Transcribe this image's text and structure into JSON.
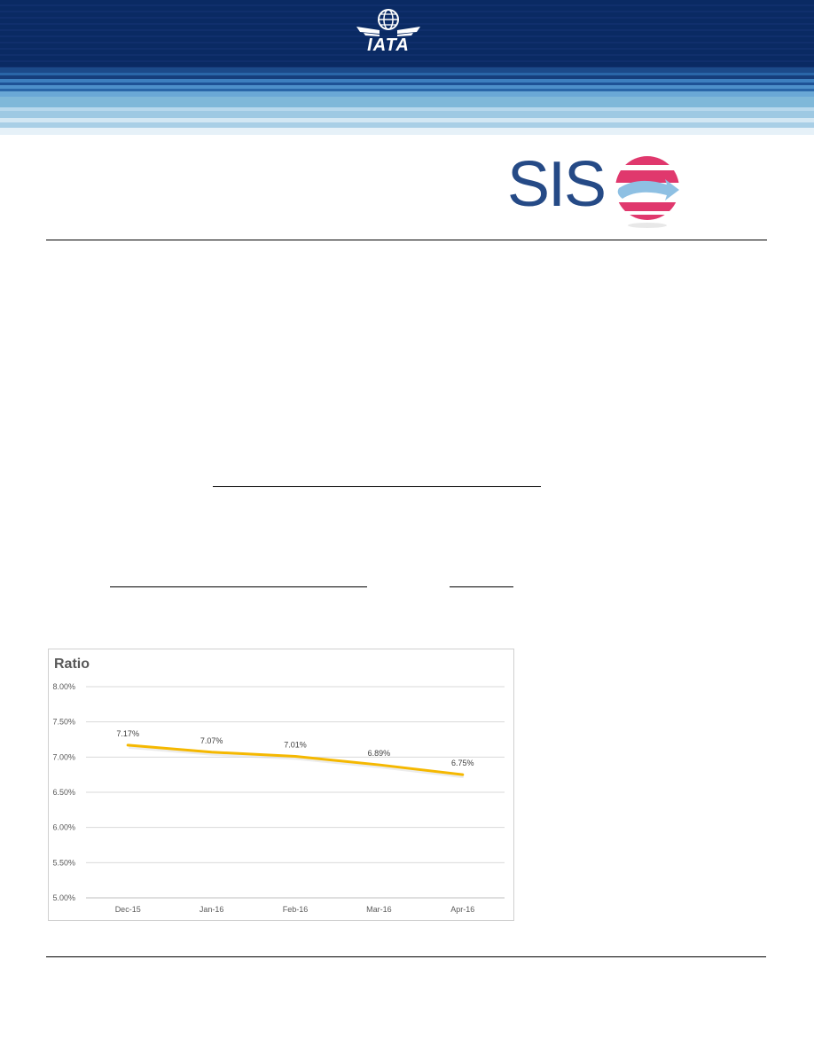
{
  "header": {
    "org_logo_text": "IATA",
    "colors": {
      "dark_navy": "#0a2a63",
      "light_blue": "#7fb8d9",
      "accent_pink": "#e0386d"
    }
  },
  "brand": {
    "product_logo_text": "SIS",
    "logo_icon": "sis-globe-icon"
  },
  "chart_data": {
    "type": "line",
    "title": "Ratio",
    "categories": [
      "Dec-15",
      "Jan-16",
      "Feb-16",
      "Mar-16",
      "Apr-16"
    ],
    "series": [
      {
        "values": [
          7.17,
          7.07,
          7.01,
          6.89,
          6.75
        ],
        "color": "#f5b800"
      }
    ],
    "data_labels": [
      "7.17%",
      "7.07%",
      "7.01%",
      "6.89%",
      "6.75%"
    ],
    "yticks": [
      "5.00%",
      "5.50%",
      "6.00%",
      "6.50%",
      "7.00%",
      "7.50%",
      "8.00%"
    ],
    "ylim": [
      5.0,
      8.0
    ],
    "grid": true
  }
}
